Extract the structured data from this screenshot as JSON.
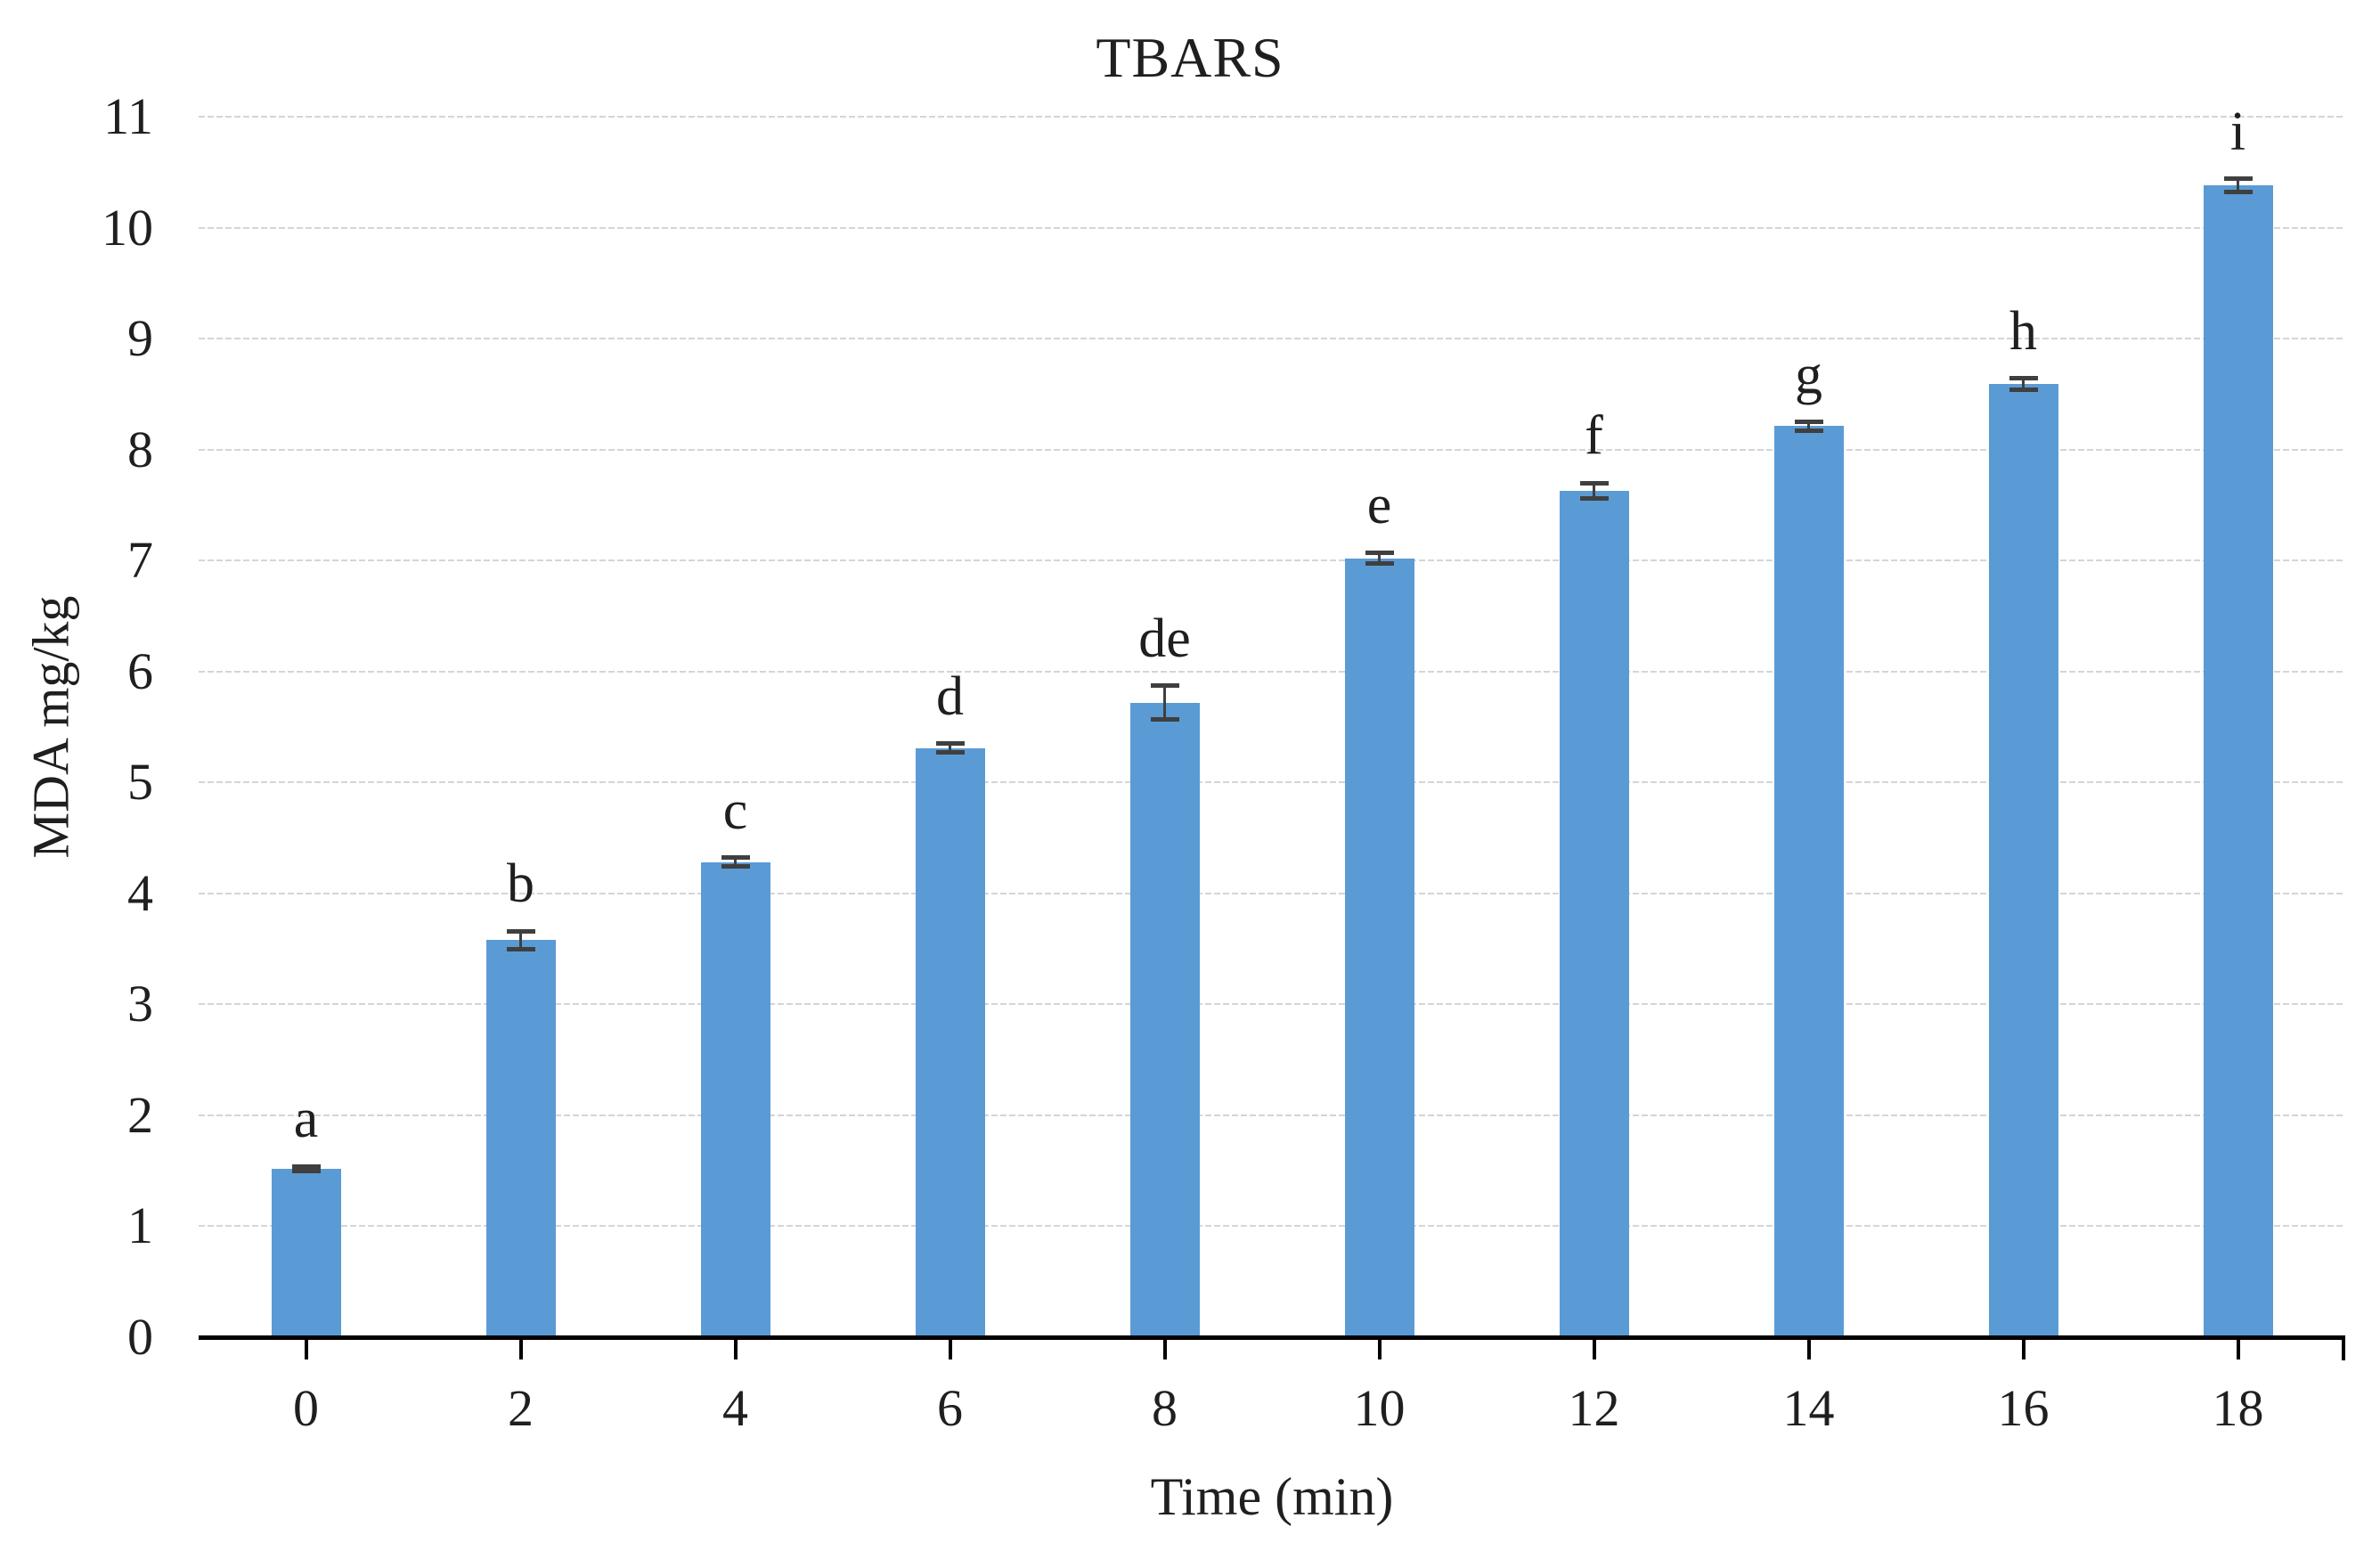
{
  "chart_data": {
    "type": "bar",
    "title": "TBARS",
    "xlabel": "Time (min)",
    "ylabel": "MDA mg/kg",
    "categories": [
      "0",
      "2",
      "4",
      "6",
      "8",
      "10",
      "12",
      "14",
      "16",
      "18"
    ],
    "values": [
      1.52,
      3.58,
      4.28,
      5.31,
      5.72,
      7.02,
      7.63,
      8.21,
      8.59,
      10.38
    ],
    "errors": [
      0.02,
      0.08,
      0.04,
      0.04,
      0.15,
      0.05,
      0.07,
      0.04,
      0.05,
      0.06
    ],
    "point_labels": [
      "a",
      "b",
      "c",
      "d",
      "de",
      "e",
      "f",
      "g",
      "h",
      "i"
    ],
    "ylim": [
      0,
      11
    ],
    "ytick_step": 1,
    "grid": true,
    "legend": false,
    "bar_color": "#5B9BD5",
    "error_bar_color": "#3F3F3F",
    "gridline_color": "#D5D5D5",
    "axis_color": "#000000",
    "text_color": "#1F1F1F"
  }
}
